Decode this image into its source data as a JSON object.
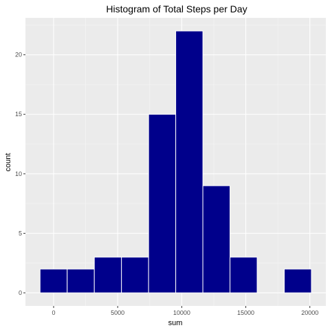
{
  "chart_data": {
    "type": "bar",
    "title": "Histogram of Total Steps per Day",
    "xlabel": "sum",
    "ylabel": "count",
    "bins": [
      {
        "x0": -1059,
        "x1": 1059,
        "count": 2
      },
      {
        "x0": 1059,
        "x1": 3177,
        "count": 2
      },
      {
        "x0": 3177,
        "x1": 5295,
        "count": 3
      },
      {
        "x0": 5295,
        "x1": 7413,
        "count": 3
      },
      {
        "x0": 7413,
        "x1": 9531,
        "count": 15
      },
      {
        "x0": 9531,
        "x1": 11649,
        "count": 22
      },
      {
        "x0": 11649,
        "x1": 13767,
        "count": 9
      },
      {
        "x0": 13767,
        "x1": 15885,
        "count": 3
      },
      {
        "x0": 15885,
        "x1": 18003,
        "count": 0
      },
      {
        "x0": 18003,
        "x1": 20121,
        "count": 2
      }
    ],
    "xlim": [
      -2200,
      21250
    ],
    "ylim": [
      -1.1,
      23.1
    ],
    "x_ticks": [
      0,
      5000,
      10000,
      15000,
      20000
    ],
    "x_tick_labels": [
      "0",
      "5000",
      "10000",
      "15000",
      "20000"
    ],
    "y_ticks": [
      0,
      5,
      10,
      15,
      20
    ],
    "y_tick_labels": [
      "0",
      "5",
      "10",
      "15",
      "20"
    ],
    "grid": true,
    "legend": "none",
    "colors": {
      "bar_fill": "#00008b",
      "bar_outline": "#ffffff",
      "panel_background": "#ebebeb",
      "grid_major": "#ffffff",
      "grid_minor": "#f5f5f5"
    }
  }
}
